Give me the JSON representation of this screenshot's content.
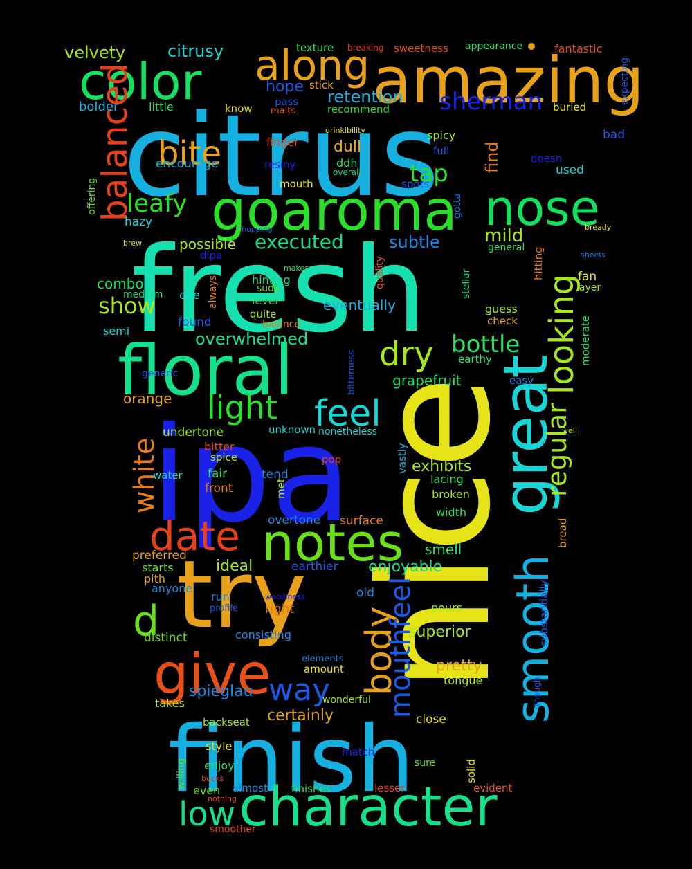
{
  "words": [
    {
      "text": "citrus",
      "color": "#16b0e0"
    },
    {
      "text": "fresh",
      "color": "#17e0b0"
    },
    {
      "text": "ipa",
      "color": "#1a22e8"
    },
    {
      "text": "nice",
      "color": "#e6e419"
    },
    {
      "text": "finish",
      "color": "#16b0e0"
    },
    {
      "text": "try",
      "color": "#e8a21a"
    },
    {
      "text": "floral",
      "color": "#16e08c"
    },
    {
      "text": "amazing",
      "color": "#e8a21a"
    },
    {
      "text": "aroma",
      "color": "#2ae02a"
    },
    {
      "text": "go",
      "color": "#2ae02a"
    },
    {
      "text": "great",
      "color": "#17d6d6"
    },
    {
      "text": "character",
      "color": "#16e08c"
    },
    {
      "text": "give",
      "color": "#e8501a"
    },
    {
      "text": "notes",
      "color": "#6ae01a"
    },
    {
      "text": "color",
      "color": "#16e060"
    },
    {
      "text": "nose",
      "color": "#16e060"
    },
    {
      "text": "smooth",
      "color": "#16b0e0"
    },
    {
      "text": "along",
      "color": "#e8a21a"
    },
    {
      "text": "date",
      "color": "#e8401a"
    },
    {
      "text": "balanced",
      "color": "#e8401a"
    },
    {
      "text": "looking",
      "color": "#a6e81a"
    },
    {
      "text": "d",
      "color": "#6ae01a"
    },
    {
      "text": "body",
      "color": "#e8a21a"
    },
    {
      "text": "mouthfeel",
      "color": "#1a5ae8"
    },
    {
      "text": "bite",
      "color": "#e8a21a"
    },
    {
      "text": "dry",
      "color": "#a6e81a"
    },
    {
      "text": "feel",
      "color": "#17d6d6"
    },
    {
      "text": "regular",
      "color": "#a6e81a"
    },
    {
      "text": "light",
      "color": "#2ae02a"
    },
    {
      "text": "low",
      "color": "#16e08c"
    },
    {
      "text": "way",
      "color": "#1a5ae8"
    },
    {
      "text": "white",
      "color": "#e87a1a"
    },
    {
      "text": "bottle",
      "color": "#2ae060"
    },
    {
      "text": "leafy",
      "color": "#2ae02a"
    },
    {
      "text": "sherman",
      "color": "#1a22e8"
    },
    {
      "text": "tap",
      "color": "#2ae02a"
    },
    {
      "text": "executed",
      "color": "#16e08c"
    },
    {
      "text": "show",
      "color": "#a6e81a"
    },
    {
      "text": "velvety",
      "color": "#a6e81a"
    },
    {
      "text": "citrusy",
      "color": "#17d6d6"
    },
    {
      "text": "retention",
      "color": "#16b0e0"
    },
    {
      "text": "find",
      "color": "#e87a1a"
    },
    {
      "text": "mild",
      "color": "#a6e81a"
    },
    {
      "text": "subtle",
      "color": "#1a8ae8"
    },
    {
      "text": "overwhelmed",
      "color": "#16e08c"
    },
    {
      "text": "spieglau",
      "color": "#1a8ae8"
    },
    {
      "text": "certainly",
      "color": "#e8a21a"
    },
    {
      "text": "superior",
      "color": "#a6e81a"
    },
    {
      "text": "enjoyable",
      "color": "#16e08c"
    },
    {
      "text": "exhibits",
      "color": "#a6e81a"
    },
    {
      "text": "pretty",
      "color": "#e8a21a"
    },
    {
      "text": "ideal",
      "color": "#a6e81a"
    },
    {
      "text": "hope",
      "color": "#1a5ae8"
    },
    {
      "text": "dull",
      "color": "#e8a21a"
    },
    {
      "text": "grapefruit",
      "color": "#16e060"
    },
    {
      "text": "eventually",
      "color": "#16b0e0"
    },
    {
      "text": "combo",
      "color": "#16e060"
    },
    {
      "text": "possible",
      "color": "#a6e81a"
    },
    {
      "text": "orange",
      "color": "#e8a21a"
    },
    {
      "text": "undertone",
      "color": "#a6e81a"
    },
    {
      "text": "hazy",
      "color": "#17d6d6"
    },
    {
      "text": "encourage",
      "color": "#16b0e0"
    },
    {
      "text": "bolder",
      "color": "#16b0e0"
    },
    {
      "text": "little",
      "color": "#2ae060"
    },
    {
      "text": "know",
      "color": "#e6e419"
    },
    {
      "text": "pass",
      "color": "#1a5ae8"
    },
    {
      "text": "malts",
      "color": "#e8501a"
    },
    {
      "text": "recommend",
      "color": "#2ae02a"
    },
    {
      "text": "texture",
      "color": "#2ae060"
    },
    {
      "text": "breaking",
      "color": "#e8401a"
    },
    {
      "text": "sweetness",
      "color": "#e8501a"
    },
    {
      "text": "appearance",
      "color": "#2ae060"
    },
    {
      "text": "fantastic",
      "color": "#e8501a"
    },
    {
      "text": "expecting",
      "color": "#1a5ae8"
    },
    {
      "text": "stick",
      "color": "#e8a21a"
    },
    {
      "text": "buried",
      "color": "#e6e419"
    },
    {
      "text": "bad",
      "color": "#1a5ae8"
    },
    {
      "text": "drinkibility",
      "color": "#e6e419"
    },
    {
      "text": "spicy",
      "color": "#a6e81a"
    },
    {
      "text": "full",
      "color": "#1a5ae8"
    },
    {
      "text": "finger",
      "color": "#e8501a"
    },
    {
      "text": "ddh",
      "color": "#2ae060"
    },
    {
      "text": "resiny",
      "color": "#1a22e8"
    },
    {
      "text": "overall",
      "color": "#16e08c"
    },
    {
      "text": "doesn",
      "color": "#1a22e8"
    },
    {
      "text": "used",
      "color": "#17d6d6"
    },
    {
      "text": "mouth",
      "color": "#e6e419"
    },
    {
      "text": "spots",
      "color": "#1a5ae8"
    },
    {
      "text": "gotta",
      "color": "#1a8ae8"
    },
    {
      "text": "offering",
      "color": "#6ae01a"
    },
    {
      "text": "hopping",
      "color": "#1a5ae8"
    },
    {
      "text": "bready",
      "color": "#e6e419"
    },
    {
      "text": "brew",
      "color": "#e6e419"
    },
    {
      "text": "dipa",
      "color": "#1a22e8"
    },
    {
      "text": "general",
      "color": "#2ae060"
    },
    {
      "text": "sheets",
      "color": "#1a8ae8"
    },
    {
      "text": "makes",
      "color": "#2ae060"
    },
    {
      "text": "hinting",
      "color": "#16e08c"
    },
    {
      "text": "quality",
      "color": "#e8501a"
    },
    {
      "text": "hitting",
      "color": "#e87a1a"
    },
    {
      "text": "fan",
      "color": "#e6e419"
    },
    {
      "text": "layer",
      "color": "#a6e81a"
    },
    {
      "text": "stellar",
      "color": "#16e08c"
    },
    {
      "text": "medium",
      "color": "#16e08c"
    },
    {
      "text": "one",
      "color": "#17d6d6"
    },
    {
      "text": "always",
      "color": "#e87a1a"
    },
    {
      "text": "suds",
      "color": "#6ae01a"
    },
    {
      "text": "level",
      "color": "#2ae060"
    },
    {
      "text": "quite",
      "color": "#a6e81a"
    },
    {
      "text": "balance",
      "color": "#e87a1a"
    },
    {
      "text": "guess",
      "color": "#a6e81a"
    },
    {
      "text": "check",
      "color": "#e8a21a"
    },
    {
      "text": "moderate",
      "color": "#2ae060"
    },
    {
      "text": "found",
      "color": "#1a5ae8"
    },
    {
      "text": "semi",
      "color": "#17d6d6"
    },
    {
      "text": "earthy",
      "color": "#2ae060"
    },
    {
      "text": "bitterness",
      "color": "#1a5ae8"
    },
    {
      "text": "generic",
      "color": "#1a5ae8"
    },
    {
      "text": "easy",
      "color": "#1a8ae8"
    },
    {
      "text": "unknown",
      "color": "#17d6d6"
    },
    {
      "text": "nonetheless",
      "color": "#17d6d6"
    },
    {
      "text": "well",
      "color": "#a6e81a"
    },
    {
      "text": "bitter",
      "color": "#e8401a"
    },
    {
      "text": "spice",
      "color": "#a6e81a"
    },
    {
      "text": "pop",
      "color": "#e8401a"
    },
    {
      "text": "vastly",
      "color": "#16b0e0"
    },
    {
      "text": "water",
      "color": "#17d6d6"
    },
    {
      "text": "fair",
      "color": "#2ae060"
    },
    {
      "text": "tend",
      "color": "#1a8ae8"
    },
    {
      "text": "front",
      "color": "#e87a1a"
    },
    {
      "text": "met",
      "color": "#a6e81a"
    },
    {
      "text": "lacing",
      "color": "#2ae060"
    },
    {
      "text": "broken",
      "color": "#a6e81a"
    },
    {
      "text": "width",
      "color": "#2ae060"
    },
    {
      "text": "overtone",
      "color": "#1a8ae8"
    },
    {
      "text": "surface",
      "color": "#e87a1a"
    },
    {
      "text": "bread",
      "color": "#e8a21a"
    },
    {
      "text": "substantially",
      "color": "#1a5ae8"
    },
    {
      "text": "preferred",
      "color": "#e8a21a"
    },
    {
      "text": "smell",
      "color": "#2ae060"
    },
    {
      "text": "starts",
      "color": "#6ae01a"
    },
    {
      "text": "earthier",
      "color": "#1a5ae8"
    },
    {
      "text": "pith",
      "color": "#e8a21a"
    },
    {
      "text": "anyone",
      "color": "#1a8ae8"
    },
    {
      "text": "old",
      "color": "#1a8ae8"
    },
    {
      "text": "run",
      "color": "#1a8ae8"
    },
    {
      "text": "woodiness",
      "color": "#1a22e8"
    },
    {
      "text": "profile",
      "color": "#1a5ae8"
    },
    {
      "text": "right",
      "color": "#e87a1a"
    },
    {
      "text": "pours",
      "color": "#a6e81a"
    },
    {
      "text": "distinct",
      "color": "#6ae01a"
    },
    {
      "text": "consisting",
      "color": "#1a8ae8"
    },
    {
      "text": "elements",
      "color": "#1a8ae8"
    },
    {
      "text": "amount",
      "color": "#e6e419"
    },
    {
      "text": "tongue",
      "color": "#a6e81a"
    },
    {
      "text": "though",
      "color": "#1a5ae8"
    },
    {
      "text": "wonderful",
      "color": "#a6e81a"
    },
    {
      "text": "takes",
      "color": "#a6e81a"
    },
    {
      "text": "close",
      "color": "#e6e419"
    },
    {
      "text": "backseat",
      "color": "#a6e81a"
    },
    {
      "text": "style",
      "color": "#e6e419"
    },
    {
      "text": "willing",
      "color": "#6ae01a"
    },
    {
      "text": "match",
      "color": "#1a22e8"
    },
    {
      "text": "solid",
      "color": "#e6e419"
    },
    {
      "text": "sure",
      "color": "#6ae01a"
    },
    {
      "text": "enjoy",
      "color": "#2ae060"
    },
    {
      "text": "bucks",
      "color": "#e8401a"
    },
    {
      "text": "even",
      "color": "#6ae01a"
    },
    {
      "text": "almost",
      "color": "#1a8ae8"
    },
    {
      "text": "finishes",
      "color": "#2ae060"
    },
    {
      "text": "lesser",
      "color": "#e8401a"
    },
    {
      "text": "evident",
      "color": "#e8501a"
    },
    {
      "text": "nothing",
      "color": "#e8401a"
    },
    {
      "text": "smoother",
      "color": "#e8401a"
    }
  ]
}
